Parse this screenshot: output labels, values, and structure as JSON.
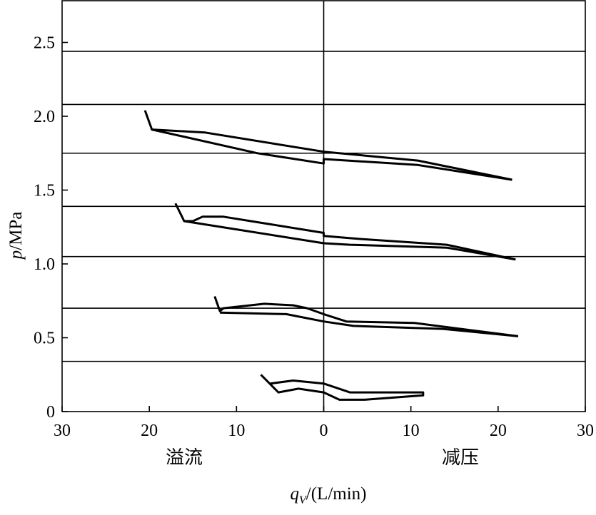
{
  "chart_data": {
    "type": "line",
    "xlabel_main": "q",
    "xlabel_sub": "V",
    "xlabel_rest": "/(L/min)",
    "ylabel_main": "p",
    "ylabel_rest": "/MPa",
    "region_labels": {
      "left": "溢流",
      "right": "减压"
    },
    "xlim": [
      -30,
      30
    ],
    "ylim": [
      0,
      2.75
    ],
    "x_ticks": [
      -30,
      -20,
      -10,
      0,
      10,
      20,
      30
    ],
    "x_tick_labels": [
      "30",
      "20",
      "10",
      "0",
      "10",
      "20",
      "30"
    ],
    "y_ticks": [
      0,
      0.5,
      1.0,
      1.5,
      2.0,
      2.5
    ],
    "y_tick_labels": [
      "0",
      "0.5",
      "1.0",
      "1.5",
      "2.0",
      "2.5"
    ],
    "horizontal_lines": [
      0.34,
      0.7,
      1.05,
      1.39,
      1.75,
      2.08,
      2.44
    ],
    "vertical_line_x": 0,
    "line_color": "#000000",
    "series": [
      {
        "points": [
          [
            -20.5,
            2.04
          ],
          [
            -19.7,
            1.91
          ],
          [
            -13.6,
            1.89
          ],
          [
            0,
            1.76
          ],
          [
            10.8,
            1.7
          ],
          [
            21.6,
            1.57
          ]
        ]
      },
      {
        "points": [
          [
            -19.7,
            1.91
          ],
          [
            -7.6,
            1.75
          ],
          [
            0,
            1.68
          ],
          [
            0,
            1.71
          ],
          [
            10.8,
            1.67
          ],
          [
            21.6,
            1.57
          ]
        ]
      },
      {
        "points": [
          [
            -17.0,
            1.41
          ],
          [
            -16.0,
            1.29
          ],
          [
            -15.0,
            1.29
          ],
          [
            -13.9,
            1.32
          ],
          [
            -11.5,
            1.32
          ],
          [
            0,
            1.21
          ],
          [
            0,
            1.19
          ],
          [
            3.9,
            1.17
          ],
          [
            14.1,
            1.13
          ],
          [
            22.0,
            1.03
          ]
        ]
      },
      {
        "points": [
          [
            -16.0,
            1.29
          ],
          [
            0,
            1.14
          ],
          [
            3.0,
            1.13
          ],
          [
            14.1,
            1.11
          ],
          [
            22.0,
            1.03
          ]
        ]
      },
      {
        "points": [
          [
            -12.5,
            0.78
          ],
          [
            -11.9,
            0.68
          ],
          [
            -11.5,
            0.7
          ],
          [
            -6.8,
            0.73
          ],
          [
            -3.5,
            0.72
          ],
          [
            -1.9,
            0.7
          ],
          [
            0,
            0.66
          ],
          [
            2.6,
            0.61
          ],
          [
            10.4,
            0.6
          ],
          [
            22.3,
            0.51
          ]
        ]
      },
      {
        "points": [
          [
            -11.9,
            0.67
          ],
          [
            -4.3,
            0.66
          ],
          [
            0,
            0.61
          ],
          [
            3.4,
            0.58
          ],
          [
            13.7,
            0.56
          ],
          [
            22.3,
            0.51
          ]
        ]
      },
      {
        "points": [
          [
            -7.2,
            0.25
          ],
          [
            -5.2,
            0.13
          ],
          [
            -2.9,
            0.155
          ],
          [
            0,
            0.13
          ],
          [
            1.8,
            0.08
          ],
          [
            4.7,
            0.08
          ],
          [
            11.4,
            0.11
          ],
          [
            11.4,
            0.13
          ],
          [
            3.0,
            0.13
          ],
          [
            0,
            0.19
          ],
          [
            -3.5,
            0.21
          ],
          [
            -6.1,
            0.19
          ]
        ]
      }
    ]
  }
}
